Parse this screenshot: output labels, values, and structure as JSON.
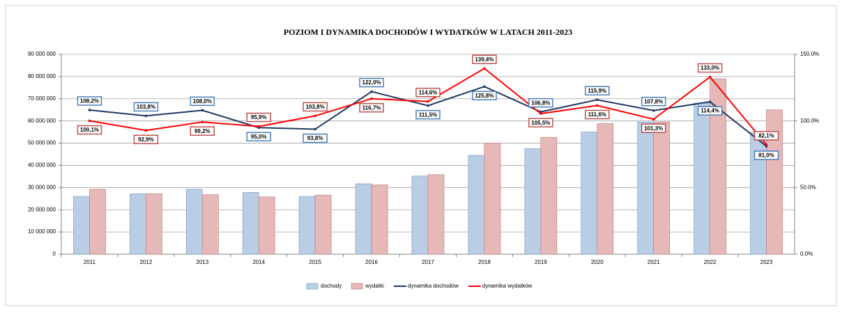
{
  "chart_data": {
    "type": "bar_line",
    "title": "POZIOM I DYNAMIKA DOCHODÓW I WYDATKÓW W LATACH 2011-2023",
    "categories": [
      "2011",
      "2012",
      "2013",
      "2014",
      "2015",
      "2016",
      "2017",
      "2018",
      "2019",
      "2020",
      "2021",
      "2022",
      "2023"
    ],
    "series": [
      {
        "name": "dochody",
        "type": "bar",
        "color": "#b9cde5",
        "values": [
          26000000,
          27200000,
          29200000,
          27800000,
          26000000,
          31700000,
          35200000,
          44500000,
          47500000,
          55000000,
          59500000,
          68000000,
          55000000
        ]
      },
      {
        "name": "wydatki",
        "type": "bar",
        "color": "#e6b9b8",
        "values": [
          29200000,
          27200000,
          26800000,
          25800000,
          26600000,
          31200000,
          35800000,
          50000000,
          52600000,
          58800000,
          59500000,
          79000000,
          65000000
        ]
      },
      {
        "name": "dynamika dochodów",
        "type": "line",
        "axis": "y2",
        "color": "#1f3864",
        "values": [
          108.2,
          103.8,
          108.0,
          95.0,
          93.8,
          122.0,
          111.5,
          125.8,
          106.8,
          115.9,
          107.8,
          114.4,
          81.0
        ],
        "value_labels": [
          "108,2%",
          "103,8%",
          "108,0%",
          "95,0%",
          "93,8%",
          "122,0%",
          "111,5%",
          "125,8%",
          "106,8%",
          "115,9%",
          "107,8%",
          "114,4%",
          "81,0%"
        ]
      },
      {
        "name": "dynamika wydatków",
        "type": "line",
        "axis": "y2",
        "color": "#ff0000",
        "values": [
          100.1,
          92.9,
          99.2,
          95.9,
          103.8,
          116.7,
          114.6,
          139.4,
          105.5,
          111.6,
          101.3,
          133.0,
          82.1
        ],
        "value_labels": [
          "100,1%",
          "92,9%",
          "99,2%",
          "95,9%",
          "103,8%",
          "116,7%",
          "114,6%",
          "139,4%",
          "105,5%",
          "111,6%",
          "101,3%",
          "133,0%",
          "82,1%"
        ]
      }
    ],
    "ylim": [
      0,
      90000000
    ],
    "yticks": [
      0,
      {
        "value": 10000000,
        "label": "10 000 000"
      },
      {
        "value": 20000000,
        "label": "20 000 000"
      },
      {
        "value": 30000000,
        "label": "30 000 000"
      },
      {
        "value": 40000000,
        "label": "40 000 000"
      },
      {
        "value": 50000000,
        "label": "50 000 000"
      },
      {
        "value": 60000000,
        "label": "60 000 000"
      },
      {
        "value": 70000000,
        "label": "70 000 000"
      },
      {
        "value": 80000000,
        "label": "80 000 000"
      },
      {
        "value": 90000000,
        "label": "90 000 000"
      }
    ],
    "y2lim": [
      0,
      150
    ],
    "y2ticks": [
      {
        "value": 0,
        "label": "0.0%"
      },
      {
        "value": 50,
        "label": "50.0%"
      },
      {
        "value": 100,
        "label": "100.0%"
      },
      {
        "value": 150,
        "label": "150.0%"
      }
    ],
    "grid": true,
    "legend": "bottom"
  }
}
